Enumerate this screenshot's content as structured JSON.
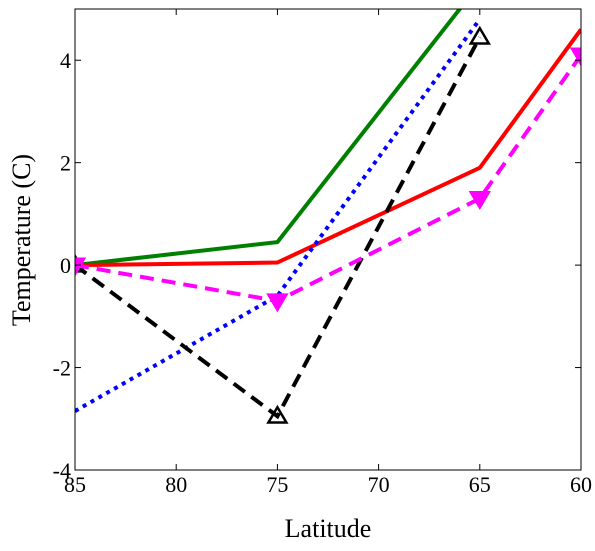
{
  "chart_data": {
    "type": "line",
    "xlabel": "Latitude",
    "ylabel": "Temperature (C)",
    "x": [
      85,
      75,
      65,
      60
    ],
    "xlim": [
      85,
      60
    ],
    "x_reversed": true,
    "xticks": [
      85,
      80,
      75,
      70,
      65,
      60
    ],
    "ylim": [
      -4,
      5
    ],
    "yticks": [
      -4,
      -2,
      0,
      2,
      4
    ],
    "grid": false,
    "series": [
      {
        "color": "#008000",
        "line_style": "solid",
        "values": [
          0,
          0.45,
          5.5,
          null
        ]
      },
      {
        "color": "#ff0000",
        "line_style": "solid",
        "values": [
          0,
          0.05,
          1.9,
          4.6
        ]
      },
      {
        "color": "#0000ff",
        "line_style": "dotted",
        "values": [
          -2.85,
          -0.6,
          4.8,
          null
        ]
      },
      {
        "color": "#000000",
        "line_style": "dashed",
        "marker": "triangle-up",
        "values": [
          0,
          -2.95,
          4.45,
          null
        ]
      },
      {
        "color": "#ff00ff",
        "line_style": "dashed",
        "marker": "triangle-down",
        "values": [
          0,
          -0.7,
          1.3,
          4.1
        ]
      }
    ]
  }
}
